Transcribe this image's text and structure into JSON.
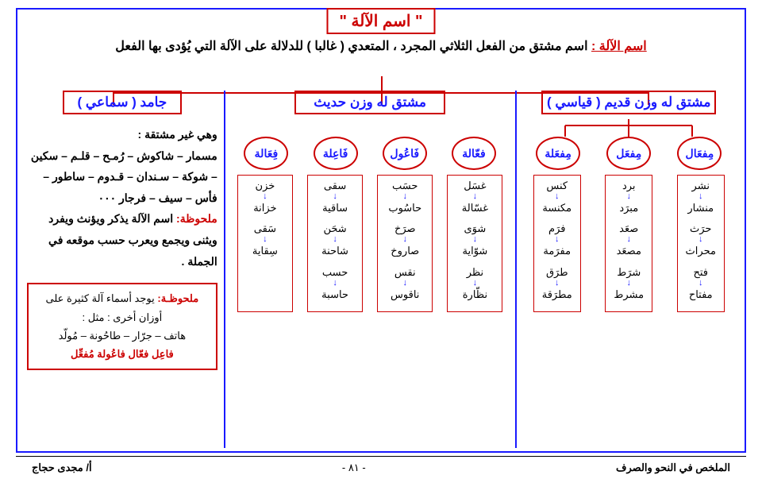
{
  "title": "\" اسم الآلة \"",
  "subtitle_label": "اسم الآلة :",
  "subtitle_text": " اسم مشتق من الفعل الثلاثي المجرد ، المتعدي ( غالبا ) للدلالة على الآلة التي يُؤدى بها الفعل",
  "cat_right": "مشتق له وزن قديم ( قياسي )",
  "cat_mid": "مشتق له وزن حديث",
  "cat_left": "جامد ( سماعي )",
  "patterns_right": [
    "مِفعَال",
    "مِفعَل",
    "مِفعَلة"
  ],
  "patterns_mid": [
    "فعّالة",
    "فَاعُول",
    "فَاعِلة",
    "فِعَالة"
  ],
  "cols_right": [
    {
      "pairs": [
        [
          "نشر",
          "منشار"
        ],
        [
          "حرَث",
          "محراث"
        ],
        [
          "فتح",
          "مفتاح"
        ]
      ]
    },
    {
      "pairs": [
        [
          "برد",
          "مبرَد"
        ],
        [
          "صعَد",
          "مصعَد"
        ],
        [
          "شرَط",
          "مشرط"
        ]
      ]
    },
    {
      "pairs": [
        [
          "كنس",
          "مكنسة"
        ],
        [
          "فرَم",
          "مفرَمة"
        ],
        [
          "طرَق",
          "مطرَقة"
        ]
      ]
    }
  ],
  "cols_mid": [
    {
      "pairs": [
        [
          "غسَل",
          "غسّالة"
        ],
        [
          "شوَى",
          "شوّاية"
        ],
        [
          "نظر",
          "نظّارة"
        ]
      ]
    },
    {
      "pairs": [
        [
          "حسَب",
          "حاسُوب"
        ],
        [
          "صرَخ",
          "صاروخ"
        ],
        [
          "نقس",
          "ناقوس"
        ]
      ]
    },
    {
      "pairs": [
        [
          "سقى",
          "ساقية"
        ],
        [
          "شحَن",
          "شاحنة"
        ],
        [
          "حسب",
          "حاسبة"
        ]
      ]
    },
    {
      "pairs": [
        [
          "خزن",
          "خزانة"
        ],
        [
          "سَقى",
          "سِقاية"
        ]
      ]
    }
  ],
  "left_intro": "وهي غير مشتقة :",
  "left_list": "مسمار – شاكوش – رُمـح – قلـم – سكين – شوكة – سـندان – قـدوم – ساطور – فأس – سيف – فرجار ٠٠٠",
  "left_note_label": "ملحوظة:",
  "left_note_text": " اسم الآلة يذكر ويؤنث ويفرد ويثنى ويجمع ويعرب حسب موقعه في الجملة .",
  "box_label": "ملحوظـة:",
  "box_text1": " يوجد أسماء آلة كثيرة على أوزان أخرى : مثل :",
  "box_text2": "هاتف – جرّار – طاحُونة – مُولّد",
  "box_patterns": "فاعِل   فعّال   فاعُولة   مُفعِّل",
  "footer_right": "الملخص في النحو والصرف",
  "footer_page": "- ٨١ -",
  "footer_left": "أ/ مجدى حجاج"
}
